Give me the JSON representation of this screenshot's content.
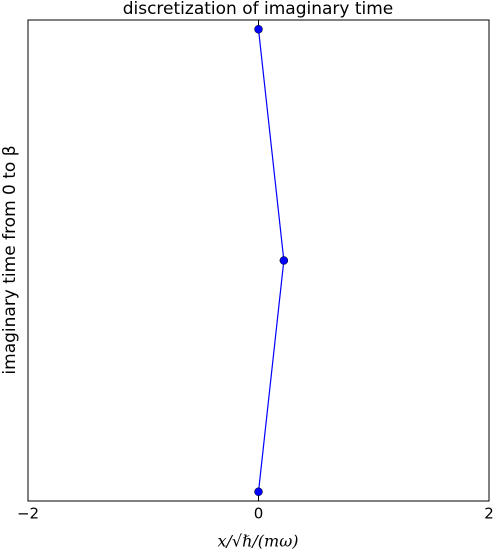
{
  "chart_data": {
    "type": "line",
    "title": "discretization of imaginary time",
    "x_label": "x/√ℏ/(mω)",
    "y_label": "imaginary time from 0 to β",
    "x": [
      0,
      0.22,
      0
    ],
    "series": [
      {
        "color": "#0000ff",
        "values": [
          0,
          1,
          2
        ]
      }
    ],
    "xlim": [
      -2,
      2
    ],
    "xticks": [
      {
        "value": -2,
        "label": "−2"
      },
      0,
      2
    ],
    "ylim": [
      -0.04,
      2.04
    ],
    "yticks": [],
    "grid": false
  }
}
